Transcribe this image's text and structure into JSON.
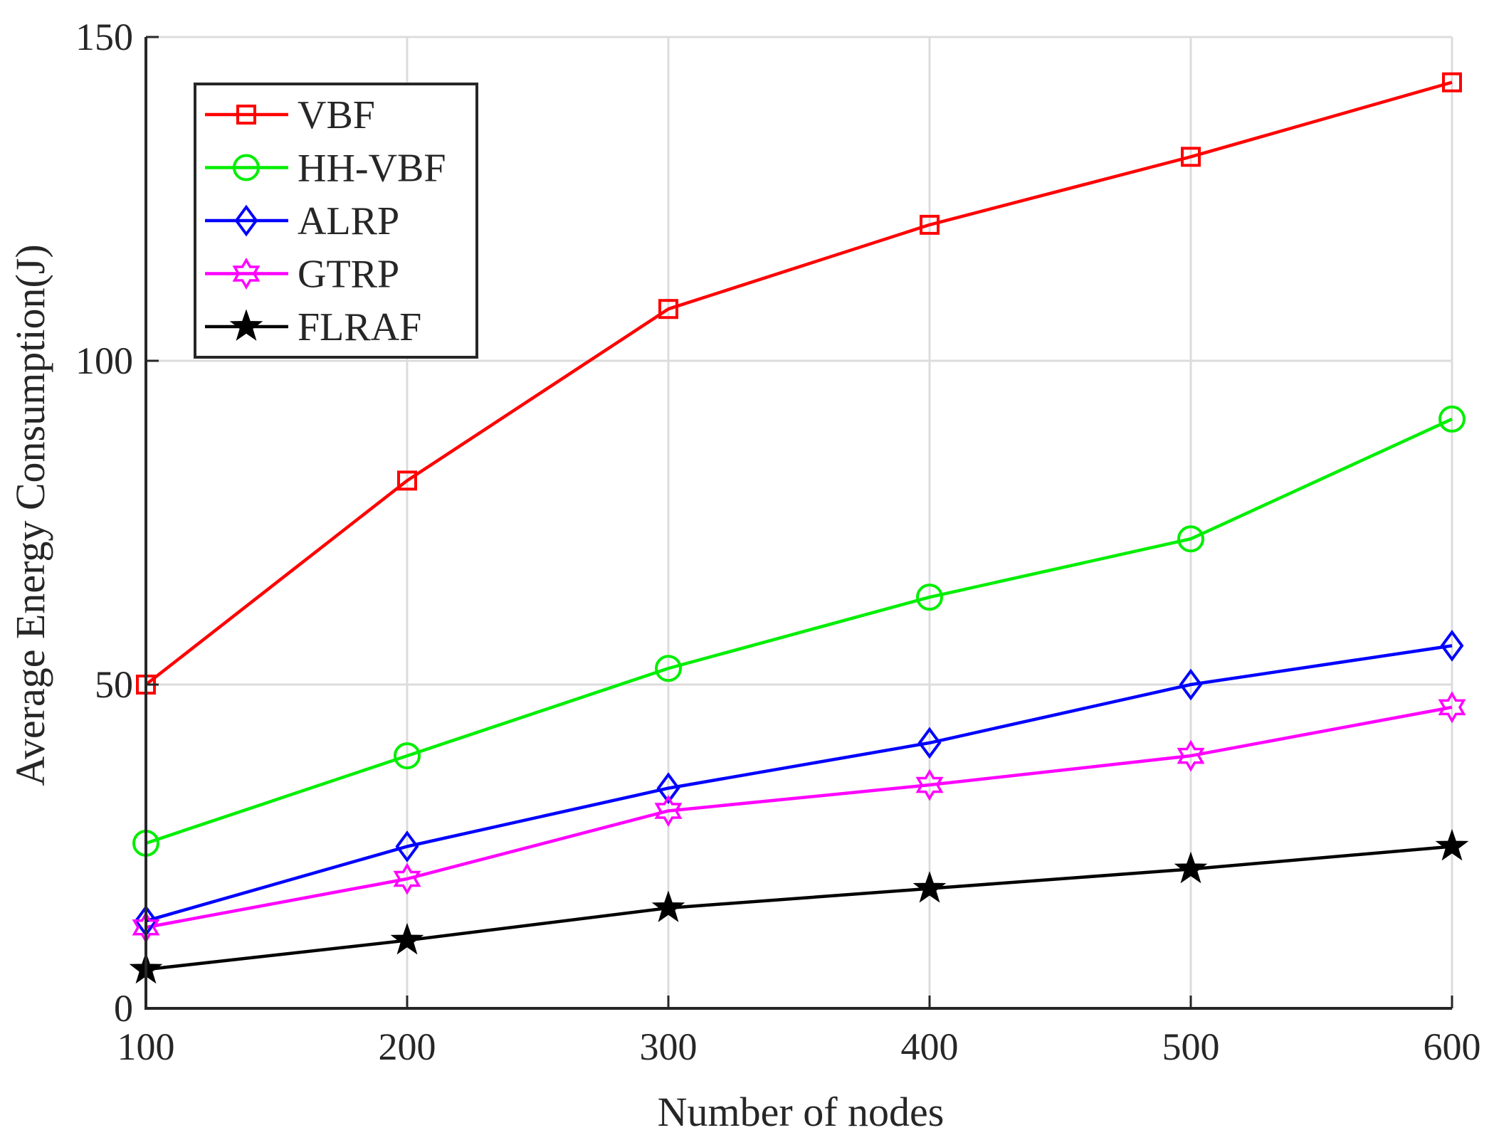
{
  "chart_data": {
    "type": "line",
    "title": "",
    "xlabel": "Number of nodes",
    "ylabel": "Average Energy Consumption(J)",
    "x": [
      100,
      200,
      300,
      400,
      500,
      600
    ],
    "xlim": [
      100,
      600
    ],
    "ylim": [
      0,
      150
    ],
    "xticks": [
      "100",
      "200",
      "300",
      "400",
      "500",
      "600"
    ],
    "yticks": [
      "0",
      "50",
      "100",
      "150"
    ],
    "ytick_values": [
      0,
      50,
      100,
      150
    ],
    "grid": true,
    "legend_position": "top-left",
    "series": [
      {
        "name": "VBF",
        "color": "#ff0000",
        "marker": "square",
        "values": [
          50,
          81.5,
          108,
          121,
          131.5,
          143
        ]
      },
      {
        "name": "HH-VBF",
        "color": "#00ee00",
        "marker": "circle",
        "values": [
          25.5,
          39,
          52.5,
          63.5,
          72.5,
          91
        ]
      },
      {
        "name": "ALRP",
        "color": "#0000ff",
        "marker": "diamond",
        "values": [
          13.5,
          25,
          34,
          41,
          50,
          56
        ]
      },
      {
        "name": "GTRP",
        "color": "#ff00ff",
        "marker": "hexagram",
        "values": [
          12.5,
          20,
          30.5,
          34.5,
          39,
          46.5
        ]
      },
      {
        "name": "FLRAF",
        "color": "#000000",
        "marker": "star",
        "values": [
          6,
          10.5,
          15.5,
          18.5,
          21.5,
          25
        ]
      }
    ]
  }
}
